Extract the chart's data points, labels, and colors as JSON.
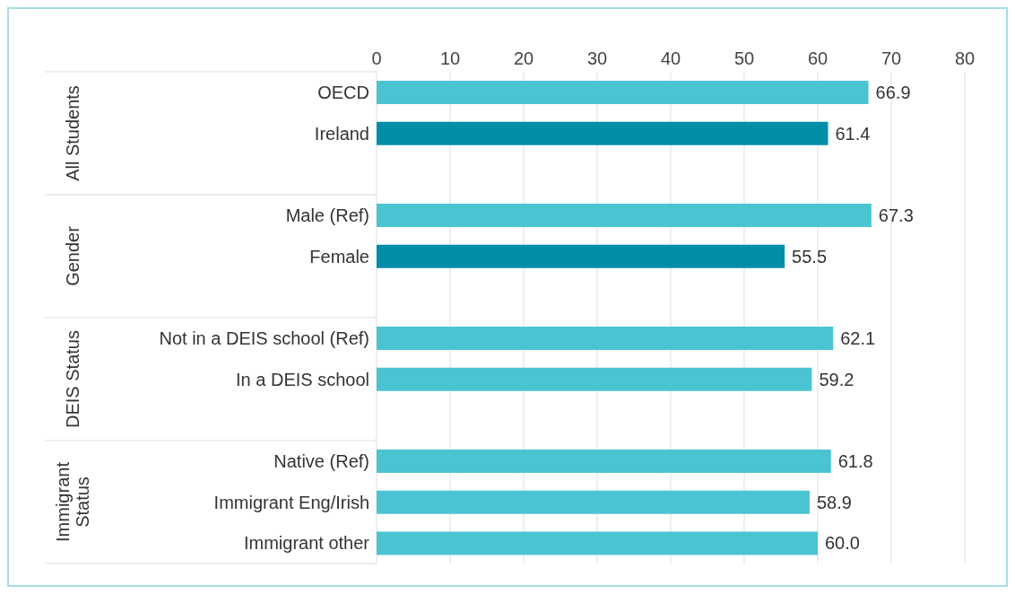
{
  "chart_data": {
    "type": "bar",
    "orientation": "horizontal",
    "categories": [
      "OECD",
      "Ireland",
      null,
      "Male (Ref)",
      "Female",
      null,
      "Not in a DEIS school (Ref)",
      "In a DEIS school",
      null,
      "Native (Ref)",
      "Immigrant Eng/Irish",
      "Immigrant other"
    ],
    "values": [
      66.9,
      61.4,
      null,
      67.3,
      55.5,
      null,
      62.1,
      59.2,
      null,
      61.8,
      58.9,
      60.0
    ],
    "colors": [
      "#4bc4d2",
      "#008ea8",
      null,
      "#4bc4d2",
      "#008ea8",
      null,
      "#4bc4d2",
      "#4bc4d2",
      null,
      "#4bc4d2",
      "#4bc4d2",
      "#4bc4d2"
    ],
    "value_labels": [
      "66.9",
      "61.4",
      null,
      "67.3",
      "55.5",
      null,
      "62.1",
      "59.2",
      null,
      "61.8",
      "58.9",
      "60.0"
    ],
    "xlim": [
      0,
      80
    ],
    "xticks": [
      0,
      10,
      20,
      30,
      40,
      50,
      60,
      70,
      80
    ],
    "grid": "x",
    "annotations": [
      "All Students",
      "Gender",
      "DEIS Status",
      "Immigrant Status"
    ]
  }
}
